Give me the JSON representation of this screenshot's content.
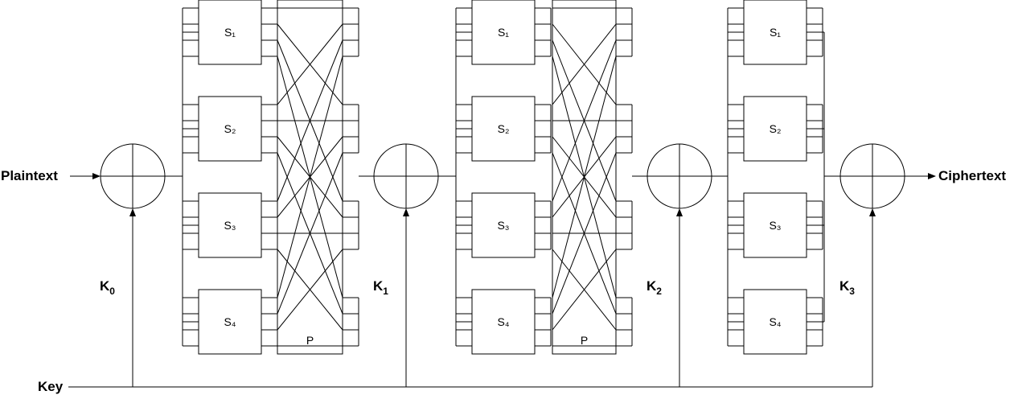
{
  "inputs": {
    "plaintext": "Plaintext",
    "ciphertext": "Ciphertext",
    "key": "Key"
  },
  "round_keys": [
    {
      "base": "K",
      "sub": "0"
    },
    {
      "base": "K",
      "sub": "1"
    },
    {
      "base": "K",
      "sub": "2"
    },
    {
      "base": "K",
      "sub": "3"
    }
  ],
  "sboxes": [
    {
      "base": "S",
      "sub": "1"
    },
    {
      "base": "S",
      "sub": "2"
    },
    {
      "base": "S",
      "sub": "3"
    },
    {
      "base": "S",
      "sub": "4"
    }
  ],
  "permutation_label": "P",
  "rounds": 3,
  "bits_per_sbox": 4,
  "permutation": [
    0,
    4,
    8,
    12,
    1,
    5,
    9,
    13,
    2,
    6,
    10,
    14,
    3,
    7,
    11,
    15
  ]
}
